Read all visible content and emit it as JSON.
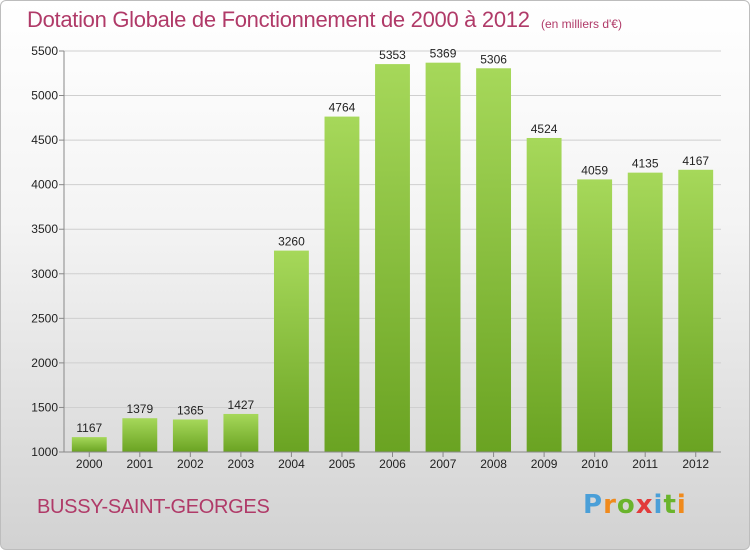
{
  "header": {
    "title": "Dotation Globale de Fonctionnement de 2000 à 2012",
    "unit_note": "(en milliers d'€)"
  },
  "footer": {
    "place_name": "BUSSY-SAINT-GEORGES",
    "logo_text": "Proxiti"
  },
  "colors": {
    "bar_light": "#a6d85a",
    "bar_dark": "#6aa322",
    "title": "#b03a68",
    "logo": [
      "#4a9fd8",
      "#f08a1c",
      "#6ab42c",
      "#e23b3b",
      "#4a9fd8",
      "#6ab42c",
      "#f08a1c"
    ]
  },
  "chart_data": {
    "type": "bar",
    "categories": [
      "2000",
      "2001",
      "2002",
      "2003",
      "2004",
      "2005",
      "2006",
      "2007",
      "2008",
      "2009",
      "2010",
      "2011",
      "2012"
    ],
    "values": [
      1167,
      1379,
      1365,
      1427,
      3260,
      4764,
      5353,
      5369,
      5306,
      4524,
      4059,
      4135,
      4167
    ],
    "ylim": [
      1000,
      5500
    ],
    "yticks": [
      1000,
      1500,
      2000,
      2500,
      3000,
      3500,
      4000,
      4500,
      5000,
      5500
    ],
    "grid": true
  }
}
